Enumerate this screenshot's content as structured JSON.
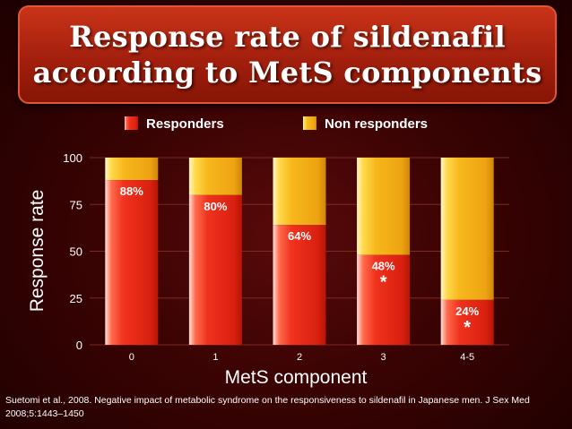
{
  "title": {
    "line1": "Response rate of sildenafil",
    "line2": "according to MetS components"
  },
  "chart_data": {
    "type": "bar",
    "stacked": true,
    "categories": [
      "0",
      "1",
      "2",
      "3",
      "4-5"
    ],
    "series": [
      {
        "name": "Responders",
        "values": [
          88,
          80,
          64,
          48,
          24
        ],
        "color": "#f0321e"
      },
      {
        "name": "Non responders",
        "values": [
          12,
          20,
          36,
          52,
          76
        ],
        "color": "#f7b81c"
      }
    ],
    "data_labels": [
      "88%",
      "80%",
      "64%",
      "48%",
      "24%"
    ],
    "significance_markers": [
      "",
      "",
      "",
      "*",
      "*"
    ],
    "xlabel": "MetS component",
    "ylabel": "Response rate",
    "ylim": [
      0,
      100
    ],
    "yticks": [
      0,
      25,
      50,
      75,
      100
    ],
    "legend_position": "top"
  },
  "citation": "Suetomi et al., 2008. Negative impact of metabolic syndrome on the responsiveness to sildenafil in Japanese men. J Sex Med 2008;5:1443–1450"
}
